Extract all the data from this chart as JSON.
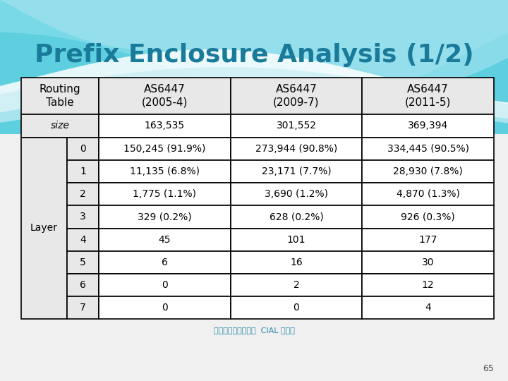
{
  "title": "Prefix Enclosure Analysis (1/2)",
  "title_color": "#1a7a9a",
  "col_headers": [
    "Routing\nTable",
    "AS6447\n(2005-4)",
    "AS6447\n(2009-7)",
    "AS6447\n(2011-5)"
  ],
  "size_row": [
    "size",
    "163,535",
    "301,552",
    "369,394"
  ],
  "layer_rows": [
    [
      "0",
      "150,245 (91.9%)",
      "273,944 (90.8%)",
      "334,445 (90.5%)"
    ],
    [
      "1",
      "11,135 (6.8%)",
      "23,171 (7.7%)",
      "28,930 (7.8%)"
    ],
    [
      "2",
      "1,775 (1.1%)",
      "3,690 (1.2%)",
      "4,870 (1.3%)"
    ],
    [
      "3",
      "329 (0.2%)",
      "628 (0.2%)",
      "926 (0.3%)"
    ],
    [
      "4",
      "45",
      "101",
      "177"
    ],
    [
      "5",
      "6",
      "16",
      "30"
    ],
    [
      "6",
      "0",
      "2",
      "12"
    ],
    [
      "7",
      "0",
      "0",
      "4"
    ]
  ],
  "footer": "成功大學資訊工程系  CIAL 實驗室",
  "page_number": "65",
  "bg_color": "#f0f0f0",
  "table_header_bg": "#e8e8e8",
  "cell_bg": "#ffffff",
  "border_color": "#000000",
  "text_color": "#000000",
  "font_size_title": 26,
  "font_size_header": 11,
  "font_size_cell": 10,
  "font_size_footer": 8,
  "wave_colors": [
    "#40c0d0",
    "#60d0e0",
    "#80d8e8",
    "#a0e0ee"
  ],
  "white_wave_color": "#ffffff"
}
